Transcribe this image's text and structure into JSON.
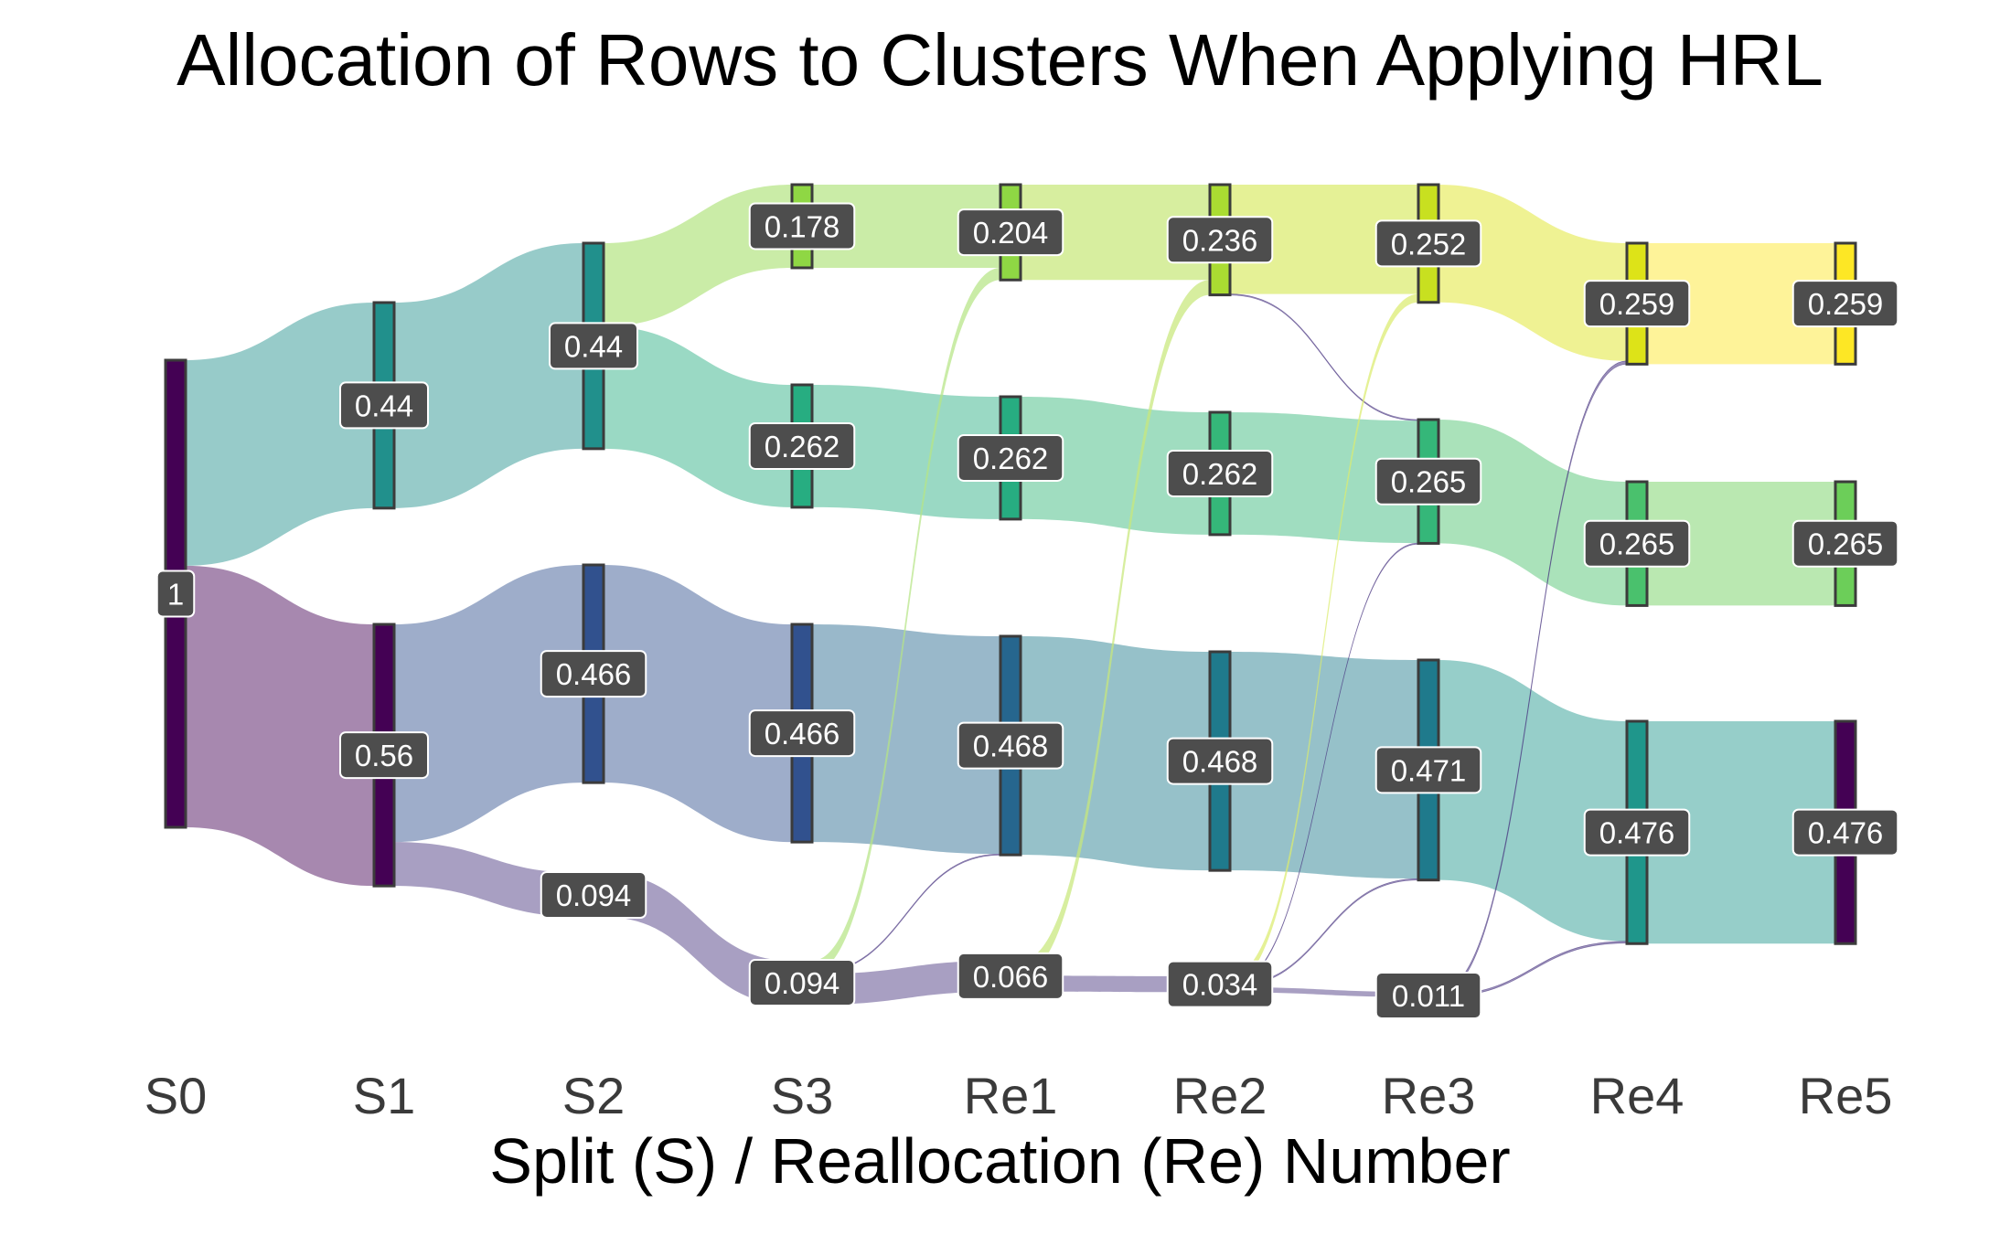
{
  "chart_data": {
    "type": "sankey",
    "title": "Allocation of Rows to Clusters When Applying HRL",
    "xlabel": "Split (S) / Reallocation (Re) Number",
    "stages": [
      "S0",
      "S1",
      "S2",
      "S3",
      "Re1",
      "Re2",
      "Re3",
      "Re4",
      "Re5"
    ],
    "nodes": [
      {
        "id": "s0",
        "stage": "S0",
        "value": 1,
        "label": "1",
        "color": "#440154"
      },
      {
        "id": "s1a",
        "stage": "S1",
        "value": 0.44,
        "label": "0.44",
        "color": "#21908C"
      },
      {
        "id": "s1b",
        "stage": "S1",
        "value": 0.56,
        "label": "0.56",
        "color": "#440154"
      },
      {
        "id": "s2a",
        "stage": "S2",
        "value": 0.44,
        "label": "0.44",
        "color": "#21908C"
      },
      {
        "id": "s2b",
        "stage": "S2",
        "value": 0.466,
        "label": "0.466",
        "color": "#31518E"
      },
      {
        "id": "s2c",
        "stage": "S2",
        "value": 0.094,
        "label": "0.094",
        "color": "#46327E"
      },
      {
        "id": "s3a",
        "stage": "S3",
        "value": 0.178,
        "label": "0.178",
        "color": "#8FD744"
      },
      {
        "id": "s3b",
        "stage": "S3",
        "value": 0.262,
        "label": "0.262",
        "color": "#27AD81"
      },
      {
        "id": "s3c",
        "stage": "S3",
        "value": 0.466,
        "label": "0.466",
        "color": "#31518E"
      },
      {
        "id": "s3d",
        "stage": "S3",
        "value": 0.094,
        "label": "0.094",
        "color": "#46327E"
      },
      {
        "id": "r1a",
        "stage": "Re1",
        "value": 0.204,
        "label": "0.204",
        "color": "#8FD744"
      },
      {
        "id": "r1b",
        "stage": "Re1",
        "value": 0.262,
        "label": "0.262",
        "color": "#27AD81"
      },
      {
        "id": "r1c",
        "stage": "Re1",
        "value": 0.468,
        "label": "0.468",
        "color": "#26668E"
      },
      {
        "id": "r1d",
        "stage": "Re1",
        "value": 0.066,
        "label": "0.066",
        "color": "#46327E"
      },
      {
        "id": "r2a",
        "stage": "Re2",
        "value": 0.236,
        "label": "0.236",
        "color": "#AADC32"
      },
      {
        "id": "r2b",
        "stage": "Re2",
        "value": 0.262,
        "label": "0.262",
        "color": "#35B779"
      },
      {
        "id": "r2c",
        "stage": "Re2",
        "value": 0.468,
        "label": "0.468",
        "color": "#1F7A8C"
      },
      {
        "id": "r2d",
        "stage": "Re2",
        "value": 0.034,
        "label": "0.034",
        "color": "#46327E"
      },
      {
        "id": "r3a",
        "stage": "Re3",
        "value": 0.252,
        "label": "0.252",
        "color": "#C8E020"
      },
      {
        "id": "r3b",
        "stage": "Re3",
        "value": 0.265,
        "label": "0.265",
        "color": "#35B779"
      },
      {
        "id": "r3c",
        "stage": "Re3",
        "value": 0.471,
        "label": "0.471",
        "color": "#1F7A8C"
      },
      {
        "id": "r3d",
        "stage": "Re3",
        "value": 0.011,
        "label": "0.011",
        "color": "#46327E"
      },
      {
        "id": "r4a",
        "stage": "Re4",
        "value": 0.259,
        "label": "0.259",
        "color": "#DDE318"
      },
      {
        "id": "r4b",
        "stage": "Re4",
        "value": 0.265,
        "label": "0.265",
        "color": "#4AC16D"
      },
      {
        "id": "r4c",
        "stage": "Re4",
        "value": 0.476,
        "label": "0.476",
        "color": "#1F968B"
      },
      {
        "id": "r5a",
        "stage": "Re5",
        "value": 0.259,
        "label": "0.259",
        "color": "#FDE725"
      },
      {
        "id": "r5b",
        "stage": "Re5",
        "value": 0.265,
        "label": "0.265",
        "color": "#6CCE59"
      },
      {
        "id": "r5c",
        "stage": "Re5",
        "value": 0.476,
        "label": "0.476",
        "color": "#440154"
      }
    ],
    "links": [
      {
        "source": "s0",
        "target": "s1a",
        "value": 0.44
      },
      {
        "source": "s0",
        "target": "s1b",
        "value": 0.56
      },
      {
        "source": "s1a",
        "target": "s2a",
        "value": 0.44
      },
      {
        "source": "s1b",
        "target": "s2b",
        "value": 0.466
      },
      {
        "source": "s1b",
        "target": "s2c",
        "value": 0.094
      },
      {
        "source": "s2a",
        "target": "s3a",
        "value": 0.178
      },
      {
        "source": "s2a",
        "target": "s3b",
        "value": 0.262
      },
      {
        "source": "s2b",
        "target": "s3c",
        "value": 0.466
      },
      {
        "source": "s2c",
        "target": "s3d",
        "value": 0.094
      },
      {
        "source": "s3a",
        "target": "r1a",
        "value": 0.178
      },
      {
        "source": "s3b",
        "target": "r1b",
        "value": 0.262
      },
      {
        "source": "s3c",
        "target": "r1c",
        "value": 0.466
      },
      {
        "source": "s3d",
        "target": "r1a",
        "value": 0.026
      },
      {
        "source": "s3d",
        "target": "r1c",
        "value": 0.002
      },
      {
        "source": "s3d",
        "target": "r1d",
        "value": 0.066
      },
      {
        "source": "r1a",
        "target": "r2a",
        "value": 0.204
      },
      {
        "source": "r1b",
        "target": "r2b",
        "value": 0.262
      },
      {
        "source": "r1c",
        "target": "r2c",
        "value": 0.468
      },
      {
        "source": "r1d",
        "target": "r2a",
        "value": 0.032
      },
      {
        "source": "r1d",
        "target": "r2d",
        "value": 0.034
      },
      {
        "source": "r2a",
        "target": "r3a",
        "value": 0.234
      },
      {
        "source": "r2a",
        "target": "r3b",
        "value": 0.002
      },
      {
        "source": "r2b",
        "target": "r3b",
        "value": 0.262
      },
      {
        "source": "r2c",
        "target": "r3c",
        "value": 0.468
      },
      {
        "source": "r2d",
        "target": "r3a",
        "value": 0.018
      },
      {
        "source": "r2d",
        "target": "r3b",
        "value": 0.001
      },
      {
        "source": "r2d",
        "target": "r3c",
        "value": 0.003
      },
      {
        "source": "r2d",
        "target": "r3d",
        "value": 0.011
      },
      {
        "source": "r3a",
        "target": "r4a",
        "value": 0.252
      },
      {
        "source": "r3b",
        "target": "r4b",
        "value": 0.265
      },
      {
        "source": "r3c",
        "target": "r4c",
        "value": 0.471
      },
      {
        "source": "r3d",
        "target": "r4a",
        "value": 0.007
      },
      {
        "source": "r3d",
        "target": "r4c",
        "value": 0.004
      },
      {
        "source": "r4a",
        "target": "r5a",
        "value": 0.259
      },
      {
        "source": "r4b",
        "target": "r5b",
        "value": 0.265
      },
      {
        "source": "r4c",
        "target": "r5c",
        "value": 0.476
      }
    ]
  }
}
